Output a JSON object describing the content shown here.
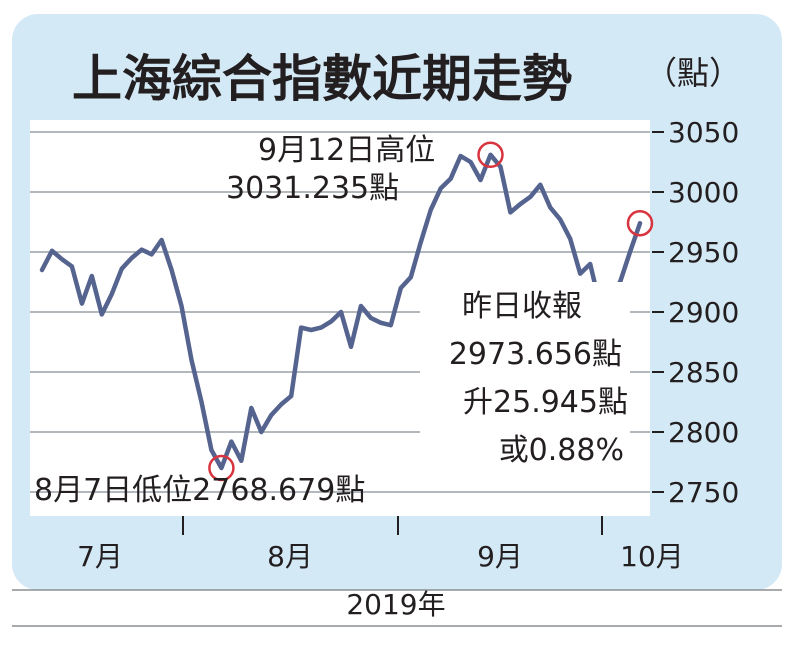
{
  "chart_data": {
    "type": "line",
    "title": "上海綜合指數近期走勢",
    "unit_label": "（點）",
    "year_label": "2019年",
    "y_ticks": [
      2750,
      2800,
      2850,
      2900,
      2950,
      3000,
      3050
    ],
    "ylim": [
      2730,
      3060
    ],
    "month_labels": [
      "7月",
      "8月",
      "9月",
      "10月"
    ],
    "series": [
      {
        "values": [
          2935,
          2951,
          2944,
          2938,
          2907,
          2930,
          2898,
          2915,
          2936,
          2945,
          2952,
          2948,
          2960,
          2935,
          2905,
          2860,
          2825,
          2785,
          2770,
          2792,
          2776,
          2820,
          2800,
          2814,
          2823,
          2830,
          2887,
          2885,
          2887,
          2892,
          2900,
          2871,
          2905,
          2895,
          2891,
          2889,
          2920,
          2929,
          2958,
          2985,
          3003,
          3011,
          3030,
          3025,
          3010,
          3031,
          3021,
          2983,
          2990,
          2996,
          3006,
          2987,
          2977,
          2961,
          2932,
          2940,
          2905,
          2915,
          2925,
          2950,
          2974
        ]
      }
    ],
    "annotations": {
      "high": {
        "line1": "9月12日高位",
        "line2": "3031.235點"
      },
      "low": {
        "text": "8月7日低位2768.679點"
      },
      "close": {
        "line1": "昨日收報",
        "line2": "2973.656點",
        "line3": "升25.945點",
        "line4": "或0.88%"
      }
    },
    "colors": {
      "frame_bg": "#d4e9f6",
      "plot_bg": "#ffffff",
      "grid": "#9aa0a6",
      "line": "#55638f",
      "marker": "#d8343f",
      "text": "#231f20"
    }
  }
}
